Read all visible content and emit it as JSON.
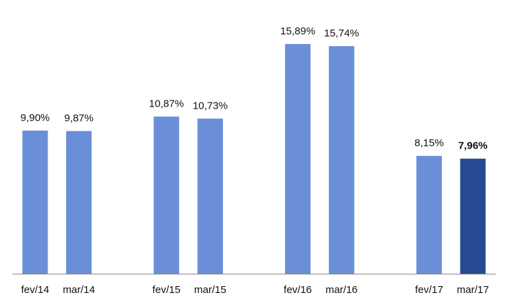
{
  "chart_data": {
    "type": "bar",
    "categories": [
      "fev/14",
      "mar/14",
      null,
      "fev/15",
      "mar/15",
      null,
      "fev/16",
      "mar/16",
      null,
      "fev/17",
      "mar/17"
    ],
    "values": [
      9.9,
      9.87,
      null,
      10.87,
      10.73,
      null,
      15.89,
      15.74,
      null,
      8.15,
      7.96
    ],
    "value_labels": [
      "9,90%",
      "9,87%",
      null,
      "10,87%",
      "10,73%",
      null,
      "15,89%",
      "15,74%",
      null,
      "8,15%",
      "7,96%"
    ],
    "color": "#6a8fd8",
    "colors": [
      "#6a8fd8",
      "#6a8fd8",
      null,
      "#6a8fd8",
      "#6a8fd8",
      null,
      "#6a8fd8",
      "#6a8fd8",
      null,
      "#6a8fd8",
      "#264a93"
    ],
    "ylim": [
      0,
      18
    ]
  }
}
